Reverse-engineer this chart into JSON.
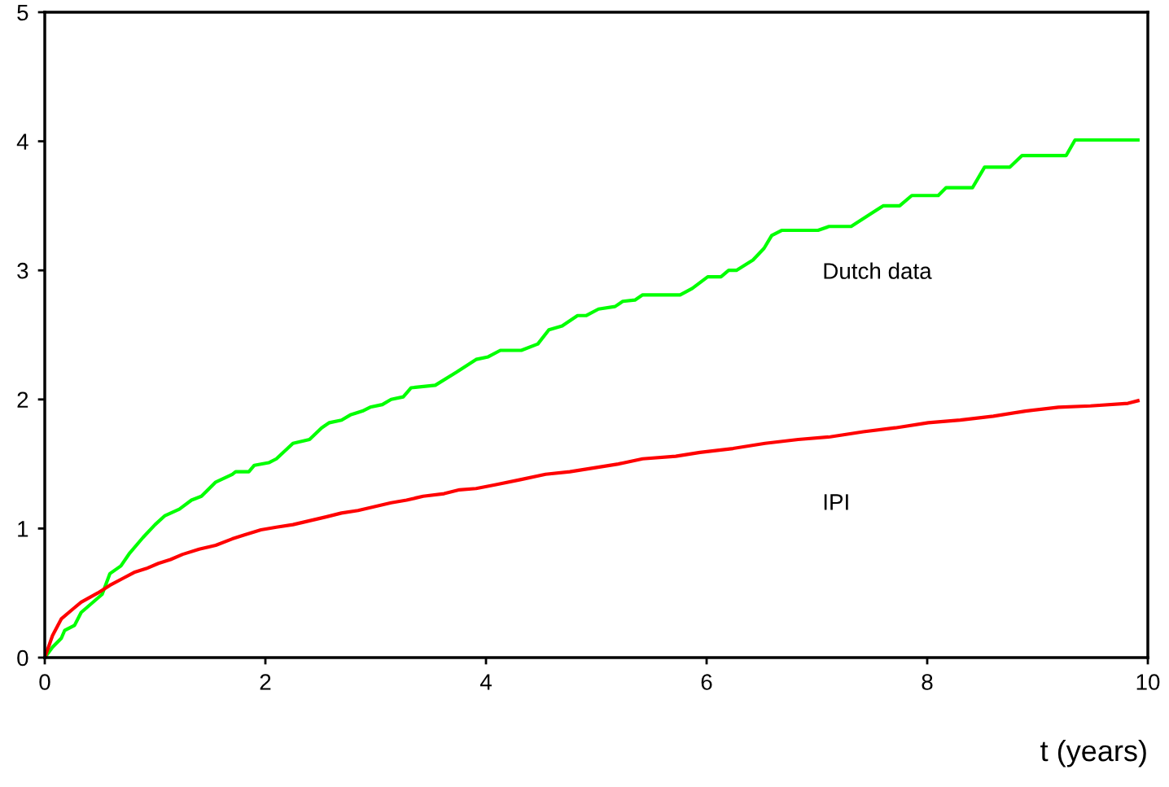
{
  "chart_data": {
    "type": "line",
    "xlabel": "t (years)",
    "xlim": [
      0,
      10
    ],
    "ylim": [
      0,
      5
    ],
    "xticks": [
      0,
      2,
      4,
      6,
      8,
      10
    ],
    "yticks": [
      0,
      1,
      2,
      3,
      4,
      5
    ],
    "grid": false,
    "legend": false,
    "marker": "none",
    "line_style": "solid",
    "series": [
      {
        "name": "Dutch data",
        "color": "#00ff00",
        "x": [
          0,
          0.07,
          0.15,
          0.18,
          0.27,
          0.33,
          0.52,
          0.59,
          0.69,
          0.77,
          0.89,
          1.0,
          1.09,
          1.22,
          1.33,
          1.42,
          1.55,
          1.7,
          1.73,
          1.85,
          1.9,
          2.03,
          2.1,
          2.25,
          2.4,
          2.51,
          2.58,
          2.69,
          2.77,
          2.88,
          2.95,
          3.06,
          3.14,
          3.25,
          3.32,
          3.54,
          3.73,
          3.91,
          4.02,
          4.13,
          4.32,
          4.47,
          4.57,
          4.69,
          4.83,
          4.91,
          5.02,
          5.17,
          5.24,
          5.35,
          5.42,
          5.76,
          5.87,
          6.01,
          6.13,
          6.2,
          6.27,
          6.42,
          6.52,
          6.59,
          6.68,
          7.01,
          7.11,
          7.31,
          7.49,
          7.6,
          7.75,
          7.86,
          8.1,
          8.17,
          8.41,
          8.52,
          8.75,
          8.86,
          9.26,
          9.34,
          9.91
        ],
        "values": [
          0,
          0.08,
          0.15,
          0.21,
          0.25,
          0.35,
          0.49,
          0.65,
          0.71,
          0.81,
          0.93,
          1.03,
          1.1,
          1.15,
          1.22,
          1.25,
          1.36,
          1.42,
          1.44,
          1.44,
          1.49,
          1.51,
          1.54,
          1.66,
          1.69,
          1.78,
          1.82,
          1.84,
          1.88,
          1.91,
          1.94,
          1.96,
          2.0,
          2.02,
          2.09,
          2.11,
          2.21,
          2.31,
          2.33,
          2.38,
          2.38,
          2.43,
          2.54,
          2.57,
          2.65,
          2.65,
          2.7,
          2.72,
          2.76,
          2.77,
          2.81,
          2.81,
          2.86,
          2.95,
          2.95,
          3.0,
          3.0,
          3.08,
          3.17,
          3.27,
          3.31,
          3.31,
          3.34,
          3.34,
          3.44,
          3.5,
          3.5,
          3.58,
          3.58,
          3.64,
          3.64,
          3.8,
          3.8,
          3.89,
          3.89,
          4.01,
          4.01
        ]
      },
      {
        "name": "IPI",
        "color": "#ff0000",
        "x": [
          0,
          0.07,
          0.15,
          0.26,
          0.33,
          0.48,
          0.59,
          0.7,
          0.81,
          0.92,
          1.03,
          1.14,
          1.25,
          1.4,
          1.55,
          1.7,
          1.81,
          1.96,
          2.1,
          2.25,
          2.4,
          2.55,
          2.69,
          2.84,
          2.99,
          3.14,
          3.28,
          3.43,
          3.62,
          3.76,
          3.91,
          4.09,
          4.32,
          4.54,
          4.76,
          4.98,
          5.2,
          5.42,
          5.72,
          5.94,
          6.24,
          6.53,
          6.83,
          7.12,
          7.42,
          7.71,
          8.01,
          8.3,
          8.6,
          8.89,
          9.19,
          9.48,
          9.82,
          9.91
        ],
        "values": [
          0,
          0.17,
          0.3,
          0.38,
          0.43,
          0.5,
          0.56,
          0.61,
          0.66,
          0.69,
          0.73,
          0.76,
          0.8,
          0.84,
          0.87,
          0.92,
          0.95,
          0.99,
          1.01,
          1.03,
          1.06,
          1.09,
          1.12,
          1.14,
          1.17,
          1.2,
          1.22,
          1.25,
          1.27,
          1.3,
          1.31,
          1.34,
          1.38,
          1.42,
          1.44,
          1.47,
          1.5,
          1.54,
          1.56,
          1.59,
          1.62,
          1.66,
          1.69,
          1.71,
          1.75,
          1.78,
          1.82,
          1.84,
          1.87,
          1.91,
          1.94,
          1.95,
          1.97,
          1.99
        ]
      }
    ]
  }
}
